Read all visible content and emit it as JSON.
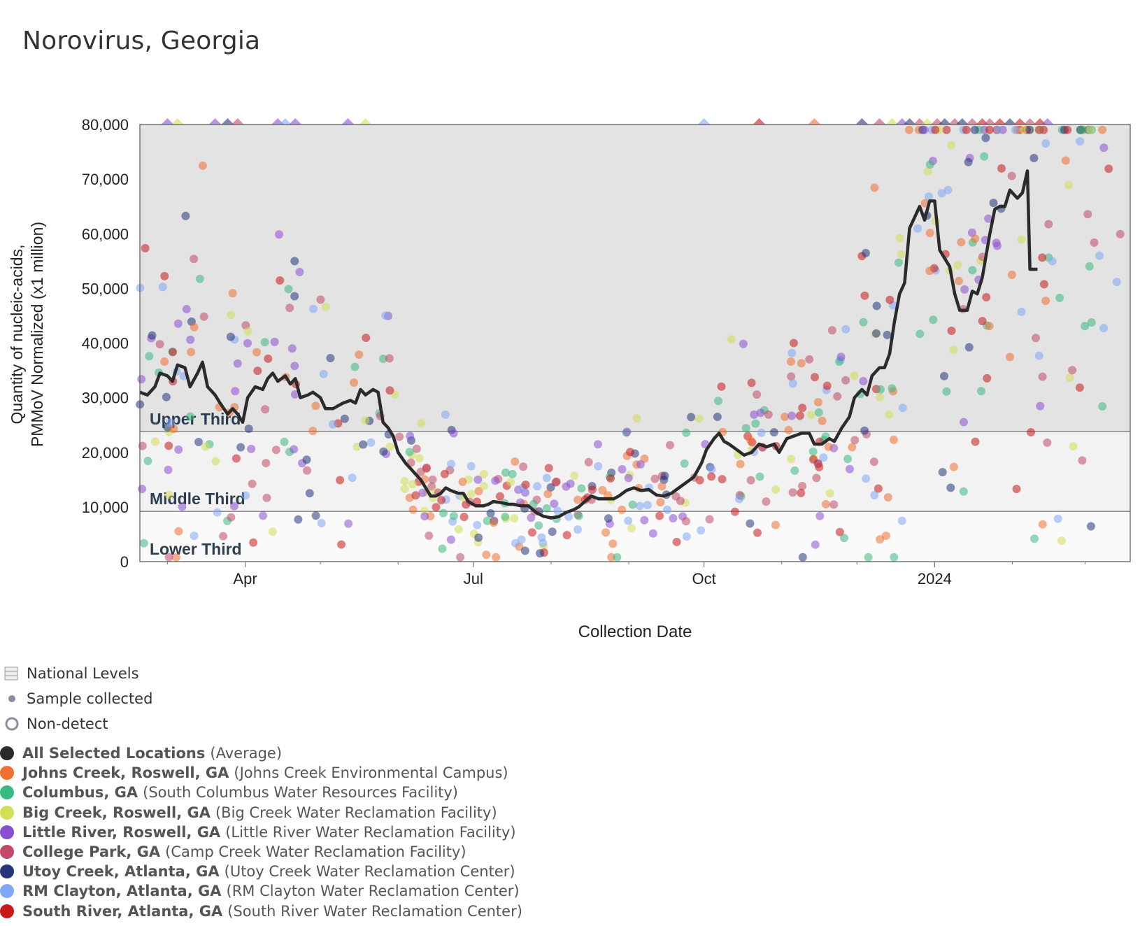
{
  "title": "Norovirus, Georgia",
  "legend_static": {
    "national_levels": "National Levels",
    "sample_collected": "Sample collected",
    "non_detect": "Non-detect"
  },
  "chart_data": {
    "type": "scatter",
    "xlabel": "Collection Date",
    "ylabel_line1": "Quantity of nucleic-acids,",
    "ylabel_line2": "PMMoV Normalized (x1 million)",
    "ylim": [
      0,
      80000
    ],
    "y_ticks": [
      {
        "value": 0,
        "label": "0"
      },
      {
        "value": 10000,
        "label": "10,000"
      },
      {
        "value": 20000,
        "label": "20,000"
      },
      {
        "value": 30000,
        "label": "30,000"
      },
      {
        "value": 40000,
        "label": "40,000"
      },
      {
        "value": 50000,
        "label": "50,000"
      },
      {
        "value": 60000,
        "label": "60,000"
      },
      {
        "value": 70000,
        "label": "70,000"
      },
      {
        "value": 80000,
        "label": "80,000"
      }
    ],
    "xlim": [
      "2023-02-18",
      "2024-03-19"
    ],
    "x_ticks": [
      {
        "date": "2023-04-01",
        "label": "Apr"
      },
      {
        "date": "2023-07-01",
        "label": "Jul"
      },
      {
        "date": "2023-10-01",
        "label": "Oct"
      },
      {
        "date": "2024-01-01",
        "label": "2024"
      }
    ],
    "grid": false,
    "national_levels": [
      {
        "label": "Upper Third",
        "from": 23800,
        "to": 80000,
        "color": "#e3e3e3"
      },
      {
        "label": "Middle Third",
        "from": 9200,
        "to": 23800,
        "color": "#f2f2f2"
      },
      {
        "label": "Lower Third",
        "from": 0,
        "to": 9200,
        "color": "#fafafa"
      }
    ],
    "series": [
      {
        "name": "All Selected Locations",
        "facility": "(Average)",
        "color": "#2b2b2b",
        "kind": "line",
        "points": [
          [
            "2023-02-18",
            31000
          ],
          [
            "2023-02-21",
            30500
          ],
          [
            "2023-02-24",
            32000
          ],
          [
            "2023-02-26",
            34500
          ],
          [
            "2023-03-01",
            34000
          ],
          [
            "2023-03-03",
            33000
          ],
          [
            "2023-03-05",
            36000
          ],
          [
            "2023-03-08",
            35500
          ],
          [
            "2023-03-10",
            32000
          ],
          [
            "2023-03-13",
            34500
          ],
          [
            "2023-03-15",
            36500
          ],
          [
            "2023-03-17",
            32000
          ],
          [
            "2023-03-20",
            30500
          ],
          [
            "2023-03-22",
            29000
          ],
          [
            "2023-03-25",
            27000
          ],
          [
            "2023-03-27",
            28000
          ],
          [
            "2023-03-29",
            27000
          ],
          [
            "2023-03-31",
            25500
          ],
          [
            "2023-04-02",
            30000
          ],
          [
            "2023-04-05",
            32000
          ],
          [
            "2023-04-08",
            31500
          ],
          [
            "2023-04-10",
            33500
          ],
          [
            "2023-04-12",
            34500
          ],
          [
            "2023-04-14",
            33000
          ],
          [
            "2023-04-17",
            34000
          ],
          [
            "2023-04-19",
            32500
          ],
          [
            "2023-04-21",
            33500
          ],
          [
            "2023-04-23",
            30000
          ],
          [
            "2023-04-26",
            30500
          ],
          [
            "2023-04-28",
            31000
          ],
          [
            "2023-05-01",
            30000
          ],
          [
            "2023-05-03",
            28000
          ],
          [
            "2023-05-06",
            28000
          ],
          [
            "2023-05-08",
            28500
          ],
          [
            "2023-05-10",
            29000
          ],
          [
            "2023-05-13",
            29500
          ],
          [
            "2023-05-15",
            29000
          ],
          [
            "2023-05-17",
            31500
          ],
          [
            "2023-05-19",
            30500
          ],
          [
            "2023-05-22",
            31500
          ],
          [
            "2023-05-24",
            31000
          ],
          [
            "2023-05-26",
            25500
          ],
          [
            "2023-05-28",
            24500
          ],
          [
            "2023-05-30",
            23000
          ],
          [
            "2023-06-01",
            20000
          ],
          [
            "2023-06-04",
            18000
          ],
          [
            "2023-06-06",
            17000
          ],
          [
            "2023-06-08",
            16000
          ],
          [
            "2023-06-10",
            15000
          ],
          [
            "2023-06-12",
            13500
          ],
          [
            "2023-06-14",
            12000
          ],
          [
            "2023-06-16",
            12000
          ],
          [
            "2023-06-18",
            12500
          ],
          [
            "2023-06-20",
            13500
          ],
          [
            "2023-06-22",
            13000
          ],
          [
            "2023-06-25",
            12500
          ],
          [
            "2023-06-27",
            12500
          ],
          [
            "2023-06-29",
            11000
          ],
          [
            "2023-07-02",
            10200
          ],
          [
            "2023-07-05",
            10200
          ],
          [
            "2023-07-07",
            10500
          ],
          [
            "2023-07-09",
            11000
          ],
          [
            "2023-07-12",
            10800
          ],
          [
            "2023-07-15",
            10500
          ],
          [
            "2023-07-17",
            10500
          ],
          [
            "2023-07-20",
            10200
          ],
          [
            "2023-07-23",
            10200
          ],
          [
            "2023-07-26",
            9000
          ],
          [
            "2023-07-29",
            8300
          ],
          [
            "2023-08-01",
            8000
          ],
          [
            "2023-08-04",
            8200
          ],
          [
            "2023-08-07",
            9000
          ],
          [
            "2023-08-10",
            9500
          ],
          [
            "2023-08-12",
            10000
          ],
          [
            "2023-08-14",
            10800
          ],
          [
            "2023-08-17",
            12000
          ],
          [
            "2023-08-20",
            11500
          ],
          [
            "2023-08-23",
            11500
          ],
          [
            "2023-08-26",
            11500
          ],
          [
            "2023-08-28",
            12000
          ],
          [
            "2023-08-31",
            13000
          ],
          [
            "2023-09-03",
            13500
          ],
          [
            "2023-09-06",
            13000
          ],
          [
            "2023-09-09",
            13200
          ],
          [
            "2023-09-12",
            12200
          ],
          [
            "2023-09-15",
            12000
          ],
          [
            "2023-09-18",
            12500
          ],
          [
            "2023-09-21",
            13500
          ],
          [
            "2023-09-24",
            14500
          ],
          [
            "2023-09-27",
            15500
          ],
          [
            "2023-09-30",
            18000
          ],
          [
            "2023-10-02",
            20500
          ],
          [
            "2023-10-05",
            22500
          ],
          [
            "2023-10-07",
            23500
          ],
          [
            "2023-10-09",
            22000
          ],
          [
            "2023-10-11",
            21500
          ],
          [
            "2023-10-14",
            20500
          ],
          [
            "2023-10-17",
            19500
          ],
          [
            "2023-10-20",
            20000
          ],
          [
            "2023-10-23",
            21500
          ],
          [
            "2023-10-26",
            21000
          ],
          [
            "2023-10-29",
            21500
          ],
          [
            "2023-10-31",
            20000
          ],
          [
            "2023-11-03",
            22500
          ],
          [
            "2023-11-06",
            23000
          ],
          [
            "2023-11-09",
            23500
          ],
          [
            "2023-11-12",
            23500
          ],
          [
            "2023-11-14",
            21500
          ],
          [
            "2023-11-17",
            21500
          ],
          [
            "2023-11-20",
            22500
          ],
          [
            "2023-11-22",
            22000
          ],
          [
            "2023-11-25",
            24500
          ],
          [
            "2023-11-28",
            26500
          ],
          [
            "2023-11-30",
            30000
          ],
          [
            "2023-12-03",
            31500
          ],
          [
            "2023-12-05",
            30500
          ],
          [
            "2023-12-07",
            34000
          ],
          [
            "2023-12-10",
            35500
          ],
          [
            "2023-12-12",
            35500
          ],
          [
            "2023-12-14",
            38000
          ],
          [
            "2023-12-16",
            44000
          ],
          [
            "2023-12-18",
            49000
          ],
          [
            "2023-12-20",
            51000
          ],
          [
            "2023-12-22",
            61000
          ],
          [
            "2023-12-24",
            63000
          ],
          [
            "2023-12-26",
            65000
          ],
          [
            "2023-12-28",
            62500
          ],
          [
            "2023-12-30",
            66000
          ],
          [
            "2024-01-01",
            66000
          ],
          [
            "2024-01-03",
            57000
          ],
          [
            "2024-01-05",
            55500
          ],
          [
            "2024-01-07",
            54000
          ],
          [
            "2024-01-09",
            49000
          ],
          [
            "2024-01-11",
            46000
          ],
          [
            "2024-01-14",
            46000
          ],
          [
            "2024-01-16",
            49500
          ],
          [
            "2024-01-18",
            49000
          ],
          [
            "2024-01-20",
            52000
          ],
          [
            "2024-01-23",
            60000
          ],
          [
            "2024-01-25",
            64500
          ],
          [
            "2024-01-27",
            65000
          ],
          [
            "2024-01-29",
            65000
          ],
          [
            "2024-01-31",
            68000
          ],
          [
            "2024-02-03",
            66500
          ],
          [
            "2024-02-05",
            67500
          ],
          [
            "2024-02-07",
            71500
          ],
          [
            "2024-02-08",
            53500
          ],
          [
            "2024-02-11",
            53500
          ]
        ]
      },
      {
        "name": "Johns Creek, Roswell, GA",
        "facility": "(Johns Creek Environmental Campus)",
        "color": "#f07030",
        "kind": "scatter",
        "points": []
      },
      {
        "name": "Columbus, GA",
        "facility": "(South Columbus Water Resources Facility)",
        "color": "#3aba80",
        "kind": "scatter",
        "points": []
      },
      {
        "name": "Big Creek, Roswell, GA",
        "facility": "(Big Creek Water Reclamation Facility)",
        "color": "#d2df58",
        "kind": "scatter",
        "points": []
      },
      {
        "name": "Little River, Roswell, GA",
        "facility": "(Little River Water Reclamation Facility)",
        "color": "#8a4fd0",
        "kind": "scatter",
        "points": []
      },
      {
        "name": "College Park, GA",
        "facility": "(Camp Creek Water Reclamation Facility)",
        "color": "#c04a68",
        "kind": "scatter",
        "points": []
      },
      {
        "name": "Utoy Creek, Atlanta, GA",
        "facility": "(Utoy Creek Water Reclamation Center)",
        "color": "#25357a",
        "kind": "scatter",
        "points": []
      },
      {
        "name": "RM Clayton, Atlanta, GA",
        "facility": "(RM Clayton Water Reclamation Center)",
        "color": "#80a8f4",
        "kind": "scatter",
        "points": []
      },
      {
        "name": "South River, Atlanta, GA",
        "facility": "(South River Water Reclamation Center)",
        "color": "#c81818",
        "kind": "scatter",
        "points": []
      }
    ]
  }
}
